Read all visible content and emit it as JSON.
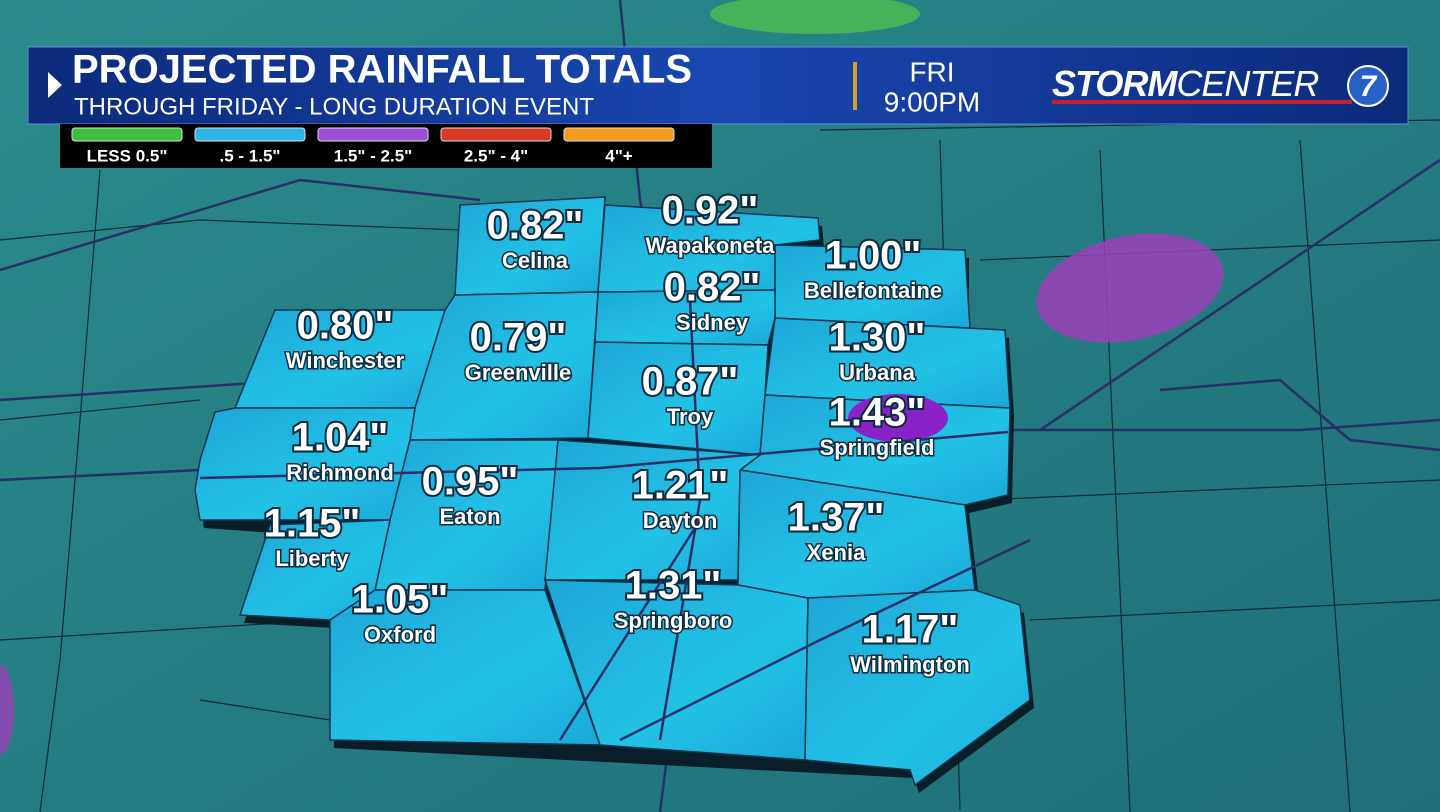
{
  "header": {
    "title": "PROJECTED RAINFALL TOTALS",
    "subtitle": "THROUGH FRIDAY - LONG DURATION EVENT",
    "day": "FRI",
    "time": "9:00PM",
    "logo": {
      "bold": "STORM",
      "light": "CENTER",
      "number": "7"
    }
  },
  "legend": [
    {
      "label": "LESS 0.5\"",
      "color": "#3fbf3f"
    },
    {
      "label": ".5 - 1.5\"",
      "color": "#2fb6e6"
    },
    {
      "label": "1.5\" - 2.5\"",
      "color": "#9a4fd6"
    },
    {
      "label": "2.5\" - 4\"",
      "color": "#d83a2a"
    },
    {
      "label": "4\"+",
      "color": "#f39a1c"
    }
  ],
  "counties": [
    {
      "name": "Celina",
      "amount": "0.82\""
    },
    {
      "name": "Wapakoneta",
      "amount": "0.92\""
    },
    {
      "name": "Bellefontaine",
      "amount": "1.00\""
    },
    {
      "name": "Sidney",
      "amount": "0.82\""
    },
    {
      "name": "Winchester",
      "amount": "0.80\""
    },
    {
      "name": "Greenville",
      "amount": "0.79\""
    },
    {
      "name": "Urbana",
      "amount": "1.30\""
    },
    {
      "name": "Troy",
      "amount": "0.87\""
    },
    {
      "name": "Springfield",
      "amount": "1.43\""
    },
    {
      "name": "Richmond",
      "amount": "1.04\""
    },
    {
      "name": "Eaton",
      "amount": "0.95\""
    },
    {
      "name": "Dayton",
      "amount": "1.21\""
    },
    {
      "name": "Liberty",
      "amount": "1.15\""
    },
    {
      "name": "Xenia",
      "amount": "1.37\""
    },
    {
      "name": "Springboro",
      "amount": "1.31\""
    },
    {
      "name": "Oxford",
      "amount": "1.05\""
    },
    {
      "name": "Wilmington",
      "amount": "1.17\""
    }
  ]
}
